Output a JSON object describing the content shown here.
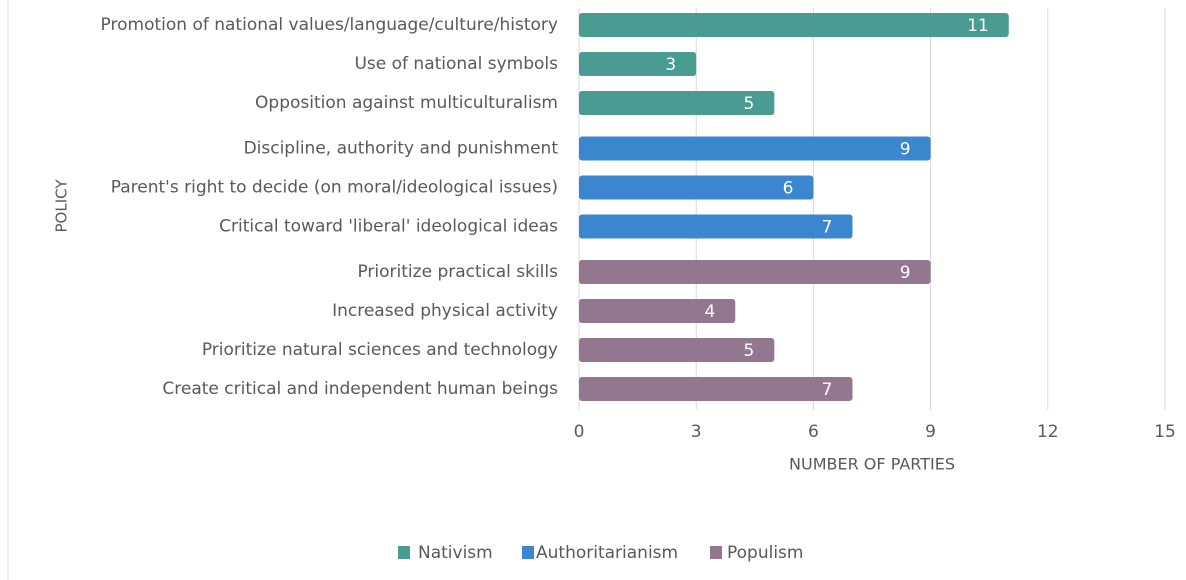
{
  "chart_data": {
    "type": "bar",
    "orientation": "horizontal",
    "categories": [
      "Promotion of national values/language/culture/history",
      "Use of national symbols",
      "Opposition against multiculturalism",
      "Discipline, authority and punishment",
      "Parent's right to decide (on moral/ideological issues)",
      "Critical toward 'liberal' ideological ideas",
      "Prioritize practical skills",
      "Increased physical activity",
      "Prioritize natural sciences and technology",
      "Create critical and independent human beings"
    ],
    "series": [
      {
        "name": "Nativism",
        "color": "#4a9b91",
        "values": [
          11,
          3,
          5,
          null,
          null,
          null,
          null,
          null,
          null,
          null
        ]
      },
      {
        "name": "Authoritarianism",
        "color": "#3a87cf",
        "values": [
          null,
          null,
          null,
          9,
          6,
          7,
          null,
          null,
          null,
          null
        ]
      },
      {
        "name": "Populism",
        "color": "#93768f",
        "values": [
          null,
          null,
          null,
          null,
          null,
          null,
          9,
          4,
          5,
          7
        ]
      }
    ],
    "xlabel": "NUMBER OF PARTIES",
    "ylabel": "POLICY",
    "xlim": [
      0,
      15
    ],
    "xticks": [
      0,
      3,
      6,
      9,
      12,
      15
    ],
    "grid": true,
    "legend": "bottom"
  }
}
